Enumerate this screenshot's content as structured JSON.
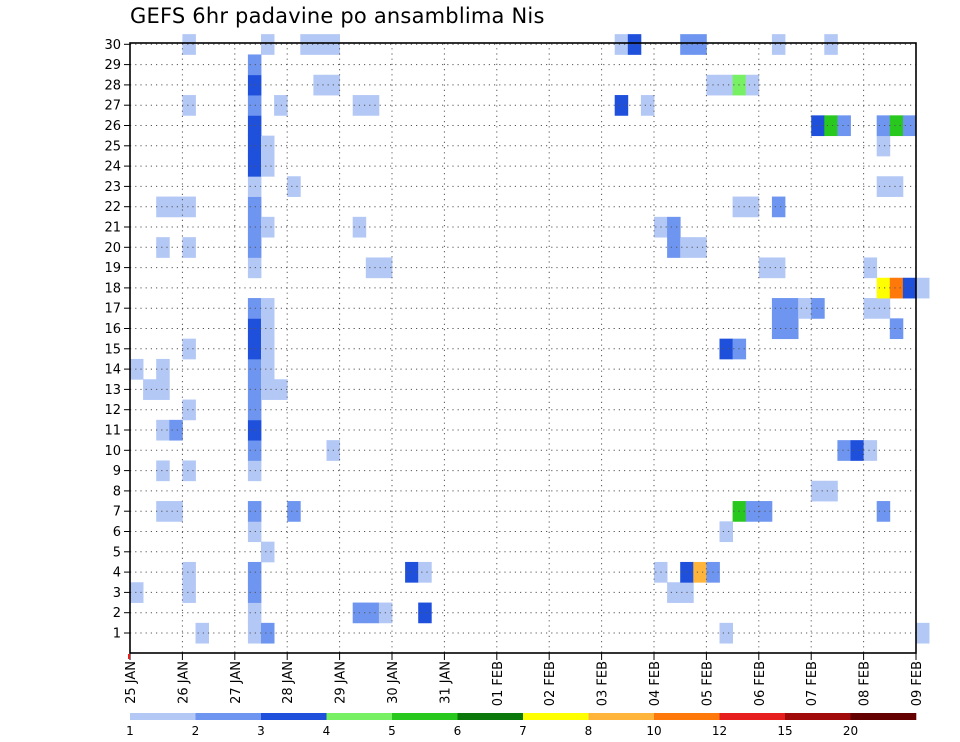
{
  "title": "GEFS 6hr padavine po ansamblima Nis",
  "chart_data": {
    "type": "heatmap",
    "title": "GEFS 6hr padavine po ansamblima Nis",
    "x_tick_labels": [
      "25 JAN",
      "26 JAN",
      "27 JAN",
      "28 JAN",
      "29 JAN",
      "30 JAN",
      "31 JAN",
      "01 FEB",
      "02 FEB",
      "03 FEB",
      "04 FEB",
      "05 FEB",
      "06 FEB",
      "07 FEB",
      "08 FEB",
      "09 FEB"
    ],
    "y_tick_labels": [
      "1",
      "2",
      "3",
      "4",
      "5",
      "6",
      "7",
      "8",
      "9",
      "10",
      "11",
      "12",
      "13",
      "14",
      "15",
      "16",
      "17",
      "18",
      "19",
      "20",
      "21",
      "22",
      "23",
      "24",
      "25",
      "26",
      "27",
      "28",
      "29",
      "30"
    ],
    "x_step": "6hr",
    "ylim": [
      1,
      30
    ],
    "grid": true,
    "colorbar": {
      "levels": [
        "1",
        "2",
        "3",
        "4",
        "5",
        "6",
        "7",
        "8",
        "10",
        "12",
        "15",
        "20"
      ],
      "colors": [
        "#b4c8f5",
        "#6e96f0",
        "#1e50dc",
        "#78f064",
        "#28c81e",
        "#0a780a",
        "#ffff00",
        "#ffb43c",
        "#ff780a",
        "#e61e1e",
        "#a00a0a",
        "#640000"
      ]
    },
    "cells": [
      [
        1,
        5,
        1
      ],
      [
        1,
        9,
        1
      ],
      [
        1,
        10,
        2
      ],
      [
        1,
        45,
        1
      ],
      [
        1,
        60,
        1
      ],
      [
        2,
        9,
        1
      ],
      [
        2,
        17,
        2
      ],
      [
        2,
        18,
        2
      ],
      [
        2,
        19,
        1
      ],
      [
        2,
        22,
        3
      ],
      [
        3,
        0,
        1
      ],
      [
        3,
        4,
        1
      ],
      [
        3,
        9,
        2
      ],
      [
        3,
        41,
        1
      ],
      [
        3,
        42,
        1
      ],
      [
        4,
        4,
        1
      ],
      [
        4,
        9,
        2
      ],
      [
        4,
        21,
        3
      ],
      [
        4,
        22,
        1
      ],
      [
        4,
        40,
        1
      ],
      [
        4,
        42,
        3
      ],
      [
        4,
        43,
        8
      ],
      [
        4,
        44,
        2
      ],
      [
        5,
        10,
        1
      ],
      [
        6,
        9,
        1
      ],
      [
        6,
        45,
        1
      ],
      [
        7,
        2,
        1
      ],
      [
        7,
        3,
        1
      ],
      [
        7,
        9,
        2
      ],
      [
        7,
        12,
        2
      ],
      [
        7,
        46,
        5
      ],
      [
        7,
        47,
        2
      ],
      [
        7,
        48,
        2
      ],
      [
        7,
        57,
        2
      ],
      [
        8,
        52,
        1
      ],
      [
        8,
        53,
        1
      ],
      [
        9,
        2,
        1
      ],
      [
        9,
        4,
        1
      ],
      [
        9,
        9,
        1
      ],
      [
        10,
        9,
        2
      ],
      [
        10,
        15,
        1
      ],
      [
        10,
        54,
        2
      ],
      [
        10,
        55,
        3
      ],
      [
        10,
        56,
        1
      ],
      [
        11,
        2,
        1
      ],
      [
        11,
        3,
        2
      ],
      [
        11,
        9,
        3
      ],
      [
        12,
        4,
        1
      ],
      [
        12,
        9,
        2
      ],
      [
        13,
        1,
        1
      ],
      [
        13,
        2,
        1
      ],
      [
        13,
        9,
        2
      ],
      [
        13,
        10,
        1
      ],
      [
        13,
        11,
        1
      ],
      [
        14,
        0,
        1
      ],
      [
        14,
        2,
        1
      ],
      [
        14,
        9,
        2
      ],
      [
        14,
        10,
        1
      ],
      [
        15,
        4,
        1
      ],
      [
        15,
        9,
        3
      ],
      [
        15,
        10,
        1
      ],
      [
        15,
        45,
        3
      ],
      [
        15,
        46,
        2
      ],
      [
        16,
        9,
        3
      ],
      [
        16,
        10,
        1
      ],
      [
        16,
        49,
        2
      ],
      [
        16,
        50,
        2
      ],
      [
        16,
        58,
        2
      ],
      [
        17,
        9,
        2
      ],
      [
        17,
        10,
        1
      ],
      [
        17,
        49,
        2
      ],
      [
        17,
        50,
        2
      ],
      [
        17,
        51,
        1
      ],
      [
        17,
        52,
        2
      ],
      [
        17,
        56,
        1
      ],
      [
        17,
        57,
        1
      ],
      [
        18,
        57,
        7
      ],
      [
        18,
        58,
        9
      ],
      [
        18,
        59,
        3
      ],
      [
        18,
        60,
        1
      ],
      [
        19,
        9,
        1
      ],
      [
        19,
        18,
        1
      ],
      [
        19,
        19,
        1
      ],
      [
        19,
        48,
        1
      ],
      [
        19,
        49,
        1
      ],
      [
        19,
        56,
        1
      ],
      [
        20,
        2,
        1
      ],
      [
        20,
        4,
        1
      ],
      [
        20,
        9,
        2
      ],
      [
        20,
        41,
        2
      ],
      [
        20,
        42,
        1
      ],
      [
        20,
        43,
        1
      ],
      [
        21,
        9,
        2
      ],
      [
        21,
        10,
        1
      ],
      [
        21,
        17,
        1
      ],
      [
        21,
        40,
        1
      ],
      [
        21,
        41,
        2
      ],
      [
        22,
        2,
        1
      ],
      [
        22,
        3,
        1
      ],
      [
        22,
        4,
        1
      ],
      [
        22,
        9,
        2
      ],
      [
        22,
        46,
        1
      ],
      [
        22,
        47,
        1
      ],
      [
        22,
        49,
        2
      ],
      [
        23,
        9,
        1
      ],
      [
        23,
        12,
        1
      ],
      [
        23,
        57,
        1
      ],
      [
        23,
        58,
        1
      ],
      [
        24,
        9,
        3
      ],
      [
        24,
        10,
        1
      ],
      [
        25,
        9,
        3
      ],
      [
        25,
        10,
        1
      ],
      [
        25,
        57,
        1
      ],
      [
        26,
        9,
        3
      ],
      [
        26,
        52,
        3
      ],
      [
        26,
        53,
        5
      ],
      [
        26,
        54,
        2
      ],
      [
        26,
        57,
        2
      ],
      [
        26,
        58,
        5
      ],
      [
        26,
        59,
        2
      ],
      [
        27,
        4,
        1
      ],
      [
        27,
        9,
        2
      ],
      [
        27,
        11,
        1
      ],
      [
        27,
        17,
        1
      ],
      [
        27,
        18,
        1
      ],
      [
        27,
        37,
        3
      ],
      [
        27,
        39,
        1
      ],
      [
        28,
        9,
        3
      ],
      [
        28,
        14,
        1
      ],
      [
        28,
        15,
        1
      ],
      [
        28,
        44,
        1
      ],
      [
        28,
        45,
        1
      ],
      [
        28,
        46,
        4
      ],
      [
        28,
        47,
        1
      ],
      [
        29,
        9,
        2
      ],
      [
        30,
        4,
        1
      ],
      [
        30,
        10,
        1
      ],
      [
        30,
        13,
        1
      ],
      [
        30,
        14,
        1
      ],
      [
        30,
        15,
        1
      ],
      [
        30,
        37,
        1
      ],
      [
        30,
        38,
        3
      ],
      [
        30,
        42,
        2
      ],
      [
        30,
        43,
        2
      ],
      [
        30,
        49,
        1
      ],
      [
        30,
        53,
        1
      ]
    ]
  }
}
